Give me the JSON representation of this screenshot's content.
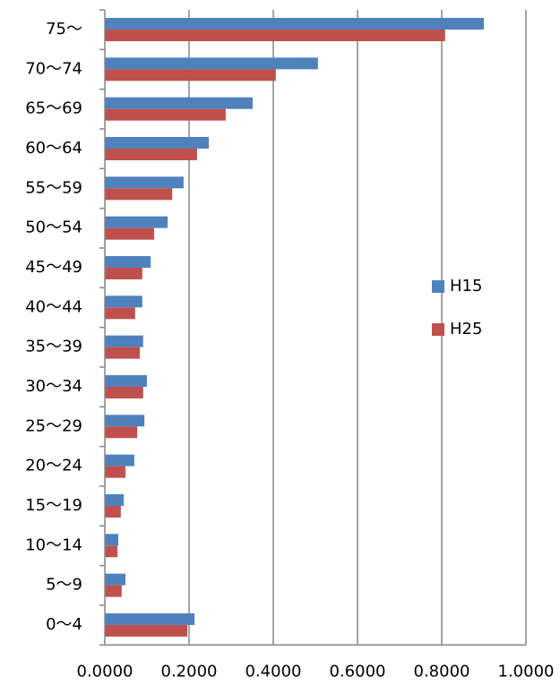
{
  "chart_data": {
    "type": "bar",
    "orientation": "horizontal",
    "categories": [
      "75〜",
      "70〜74",
      "65〜69",
      "60〜64",
      "55〜59",
      "50〜54",
      "45〜49",
      "40〜44",
      "35〜39",
      "30〜34",
      "25〜29",
      "20〜24",
      "15〜19",
      "10〜14",
      "5〜9",
      "0〜4"
    ],
    "series": [
      {
        "name": "H15",
        "color": "#4f81bd",
        "values": [
          0.9,
          0.506,
          0.351,
          0.247,
          0.187,
          0.149,
          0.109,
          0.089,
          0.091,
          0.1,
          0.094,
          0.07,
          0.045,
          0.032,
          0.049,
          0.213
        ]
      },
      {
        "name": "H25",
        "color": "#c0504d",
        "values": [
          0.808,
          0.406,
          0.287,
          0.219,
          0.16,
          0.117,
          0.089,
          0.072,
          0.083,
          0.091,
          0.077,
          0.049,
          0.038,
          0.03,
          0.04,
          0.196
        ]
      }
    ],
    "xlim": [
      0,
      1
    ],
    "xticks": [
      {
        "value": 0,
        "label": "0.0000"
      },
      {
        "value": 0.2,
        "label": "0.2000"
      },
      {
        "value": 0.4,
        "label": "0.4000"
      },
      {
        "value": 0.6,
        "label": "0.6000"
      },
      {
        "value": 0.8,
        "label": "0.8000"
      },
      {
        "value": 1,
        "label": "1.0000"
      }
    ],
    "grid": true,
    "legend": "right"
  }
}
